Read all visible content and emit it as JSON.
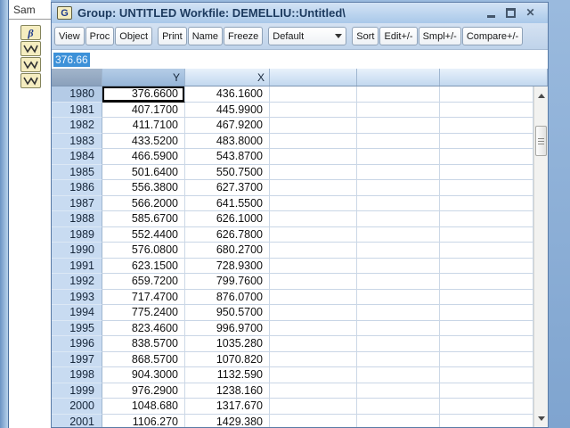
{
  "background_window": {
    "title_fragment": "Sam",
    "object_icons": [
      "beta-coefficient-object",
      "series-object",
      "series-object",
      "series-object"
    ]
  },
  "group_window": {
    "icon_letter": "G",
    "title": "Group: UNTITLED  Workfile: DEMELLIU::Untitled\\"
  },
  "toolbar": {
    "button_groups": [
      [
        "View",
        "Proc",
        "Object"
      ],
      [
        "Print",
        "Name",
        "Freeze"
      ]
    ],
    "dropdown_value": "Default",
    "right_buttons": [
      "Sort",
      "Edit+/-",
      "Smpl+/-",
      "Compare+/-"
    ]
  },
  "edit_bar": {
    "value": "376.66"
  },
  "table": {
    "column_headers": [
      "",
      "Y",
      "X",
      "",
      "",
      ""
    ],
    "selected_cell": {
      "row_year": "1980",
      "column": "Y",
      "value": "376.6600"
    },
    "rows": [
      {
        "year": "1980",
        "y": "376.6600",
        "x": "436.1600"
      },
      {
        "year": "1981",
        "y": "407.1700",
        "x": "445.9900"
      },
      {
        "year": "1982",
        "y": "411.7100",
        "x": "467.9200"
      },
      {
        "year": "1983",
        "y": "433.5200",
        "x": "483.8000"
      },
      {
        "year": "1984",
        "y": "466.5900",
        "x": "543.8700"
      },
      {
        "year": "1985",
        "y": "501.6400",
        "x": "550.7500"
      },
      {
        "year": "1986",
        "y": "556.3800",
        "x": "627.3700"
      },
      {
        "year": "1987",
        "y": "566.2000",
        "x": "641.5500"
      },
      {
        "year": "1988",
        "y": "585.6700",
        "x": "626.1000"
      },
      {
        "year": "1989",
        "y": "552.4400",
        "x": "626.7800"
      },
      {
        "year": "1990",
        "y": "576.0800",
        "x": "680.2700"
      },
      {
        "year": "1991",
        "y": "623.1500",
        "x": "728.9300"
      },
      {
        "year": "1992",
        "y": "659.7200",
        "x": "799.7600"
      },
      {
        "year": "1993",
        "y": "717.4700",
        "x": "876.0700"
      },
      {
        "year": "1994",
        "y": "775.2400",
        "x": "950.5700"
      },
      {
        "year": "1995",
        "y": "823.4600",
        "x": "996.9700"
      },
      {
        "year": "1996",
        "y": "838.5700",
        "x": "1035.280"
      },
      {
        "year": "1997",
        "y": "868.5700",
        "x": "1070.820"
      },
      {
        "year": "1998",
        "y": "904.3000",
        "x": "1132.590"
      },
      {
        "year": "1999",
        "y": "976.2900",
        "x": "1238.160"
      },
      {
        "year": "2000",
        "y": "1048.680",
        "x": "1317.670"
      },
      {
        "year": "2001",
        "y": "1106.270",
        "x": "1429.380"
      }
    ]
  },
  "colors": {
    "titlebar_blue": "#bcd4ee",
    "selection_blue": "#3d91d8",
    "header_highlight": "#97b6d8",
    "row_label_blue": "#c8dbf1",
    "desktop_blue": "#8cb2de"
  }
}
